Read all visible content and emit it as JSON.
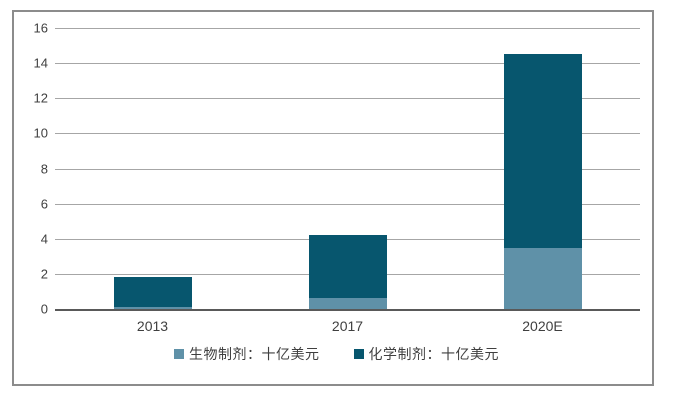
{
  "chart_data": {
    "type": "bar",
    "stacked": true,
    "title": "",
    "categories": [
      "2013",
      "2017",
      "2020E"
    ],
    "series": [
      {
        "name": "生物制剂：十亿美元",
        "color": "#5F91A8",
        "values": [
          0.1,
          0.6,
          3.5
        ]
      },
      {
        "name": "化学制剂：十亿美元",
        "color": "#07566E",
        "values": [
          1.7,
          3.6,
          11.0
        ]
      }
    ],
    "totals": [
      1.8,
      4.2,
      14.5
    ],
    "ylim": [
      0,
      16
    ],
    "yticks": [
      0,
      2,
      4,
      6,
      8,
      10,
      12,
      14,
      16
    ],
    "grid": true,
    "legend_position": "bottom",
    "xlabel": "",
    "ylabel": ""
  },
  "style_colors": {
    "gridline": "#A6A6A6",
    "axis_line": "#595959",
    "text": "#3F3F3F",
    "frame_border": "#8C8C8C",
    "background": "#FFFFFF"
  }
}
